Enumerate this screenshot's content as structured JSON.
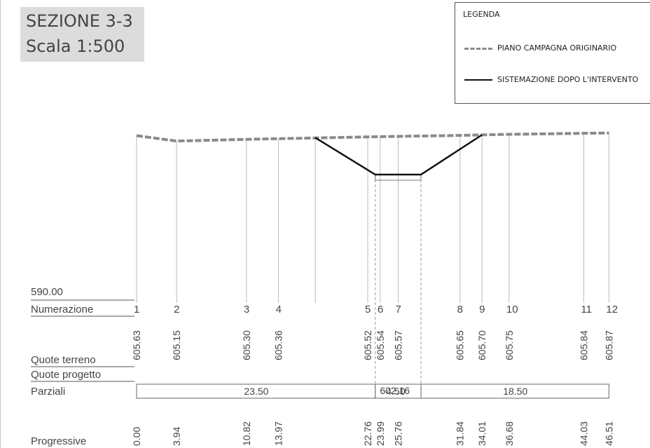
{
  "title": {
    "section": "SEZIONE 3-3",
    "scale": "Scala 1:500"
  },
  "legend": {
    "heading": "LEGENDA",
    "items": [
      {
        "label": "PIANO CAMPAGNA ORIGINARIO",
        "style": "dashed",
        "color": "#8a8a8a"
      },
      {
        "label": "SISTEMAZIONE DOPO L'INTERVENTO",
        "style": "solid",
        "color": "#111111"
      }
    ]
  },
  "datum": "590.00",
  "rows": {
    "numerazione": "Numerazione",
    "quote_terreno": "Quote terreno",
    "quote_progetto": "Quote progetto",
    "parziali": "Parziali",
    "progressive": "Progressive"
  },
  "stations": [
    {
      "n": "1",
      "progressiva": "0.00",
      "quota": "605.63"
    },
    {
      "n": "2",
      "progressiva": "3.94",
      "quota": "605.15"
    },
    {
      "n": "3",
      "progressiva": "10.82",
      "quota": "605.30"
    },
    {
      "n": "4",
      "progressiva": "13.97",
      "quota": "605.36"
    },
    {
      "n": "5",
      "progressiva": "22.76",
      "quota": "605.52"
    },
    {
      "n": "6",
      "progressiva": "23.99",
      "quota": "605.54"
    },
    {
      "n": "7",
      "progressiva": "25.76",
      "quota": "605.57"
    },
    {
      "n": "8",
      "progressiva": "31.84",
      "quota": "605.65"
    },
    {
      "n": "9",
      "progressiva": "34.01",
      "quota": "605.70"
    },
    {
      "n": "10",
      "progressiva": "36.68",
      "quota": "605.75"
    },
    {
      "n": "11",
      "progressiva": "44.03",
      "quota": "605.84"
    },
    {
      "n": "12",
      "progressiva": "46.51",
      "quota": "605.87"
    }
  ],
  "quota_progetto": "602.16",
  "parziali": [
    {
      "from": 0,
      "to": 23.5,
      "value": "23.50"
    },
    {
      "from": 23.5,
      "to": 28.0,
      "value": "4.50"
    },
    {
      "from": 28.0,
      "to": 46.51,
      "value": "18.50"
    }
  ],
  "terrain": [
    [
      0,
      605.63
    ],
    [
      3.94,
      605.15
    ],
    [
      10.82,
      605.3
    ],
    [
      13.97,
      605.36
    ],
    [
      22.76,
      605.52
    ],
    [
      23.99,
      605.54
    ],
    [
      25.76,
      605.57
    ],
    [
      31.84,
      605.65
    ],
    [
      34.01,
      605.7
    ],
    [
      36.68,
      605.75
    ],
    [
      44.03,
      605.84
    ],
    [
      46.51,
      605.87
    ]
  ],
  "project": [
    [
      17.6,
      605.45
    ],
    [
      23.5,
      602.16
    ],
    [
      28.0,
      602.16
    ],
    [
      34.01,
      605.7
    ]
  ]
}
